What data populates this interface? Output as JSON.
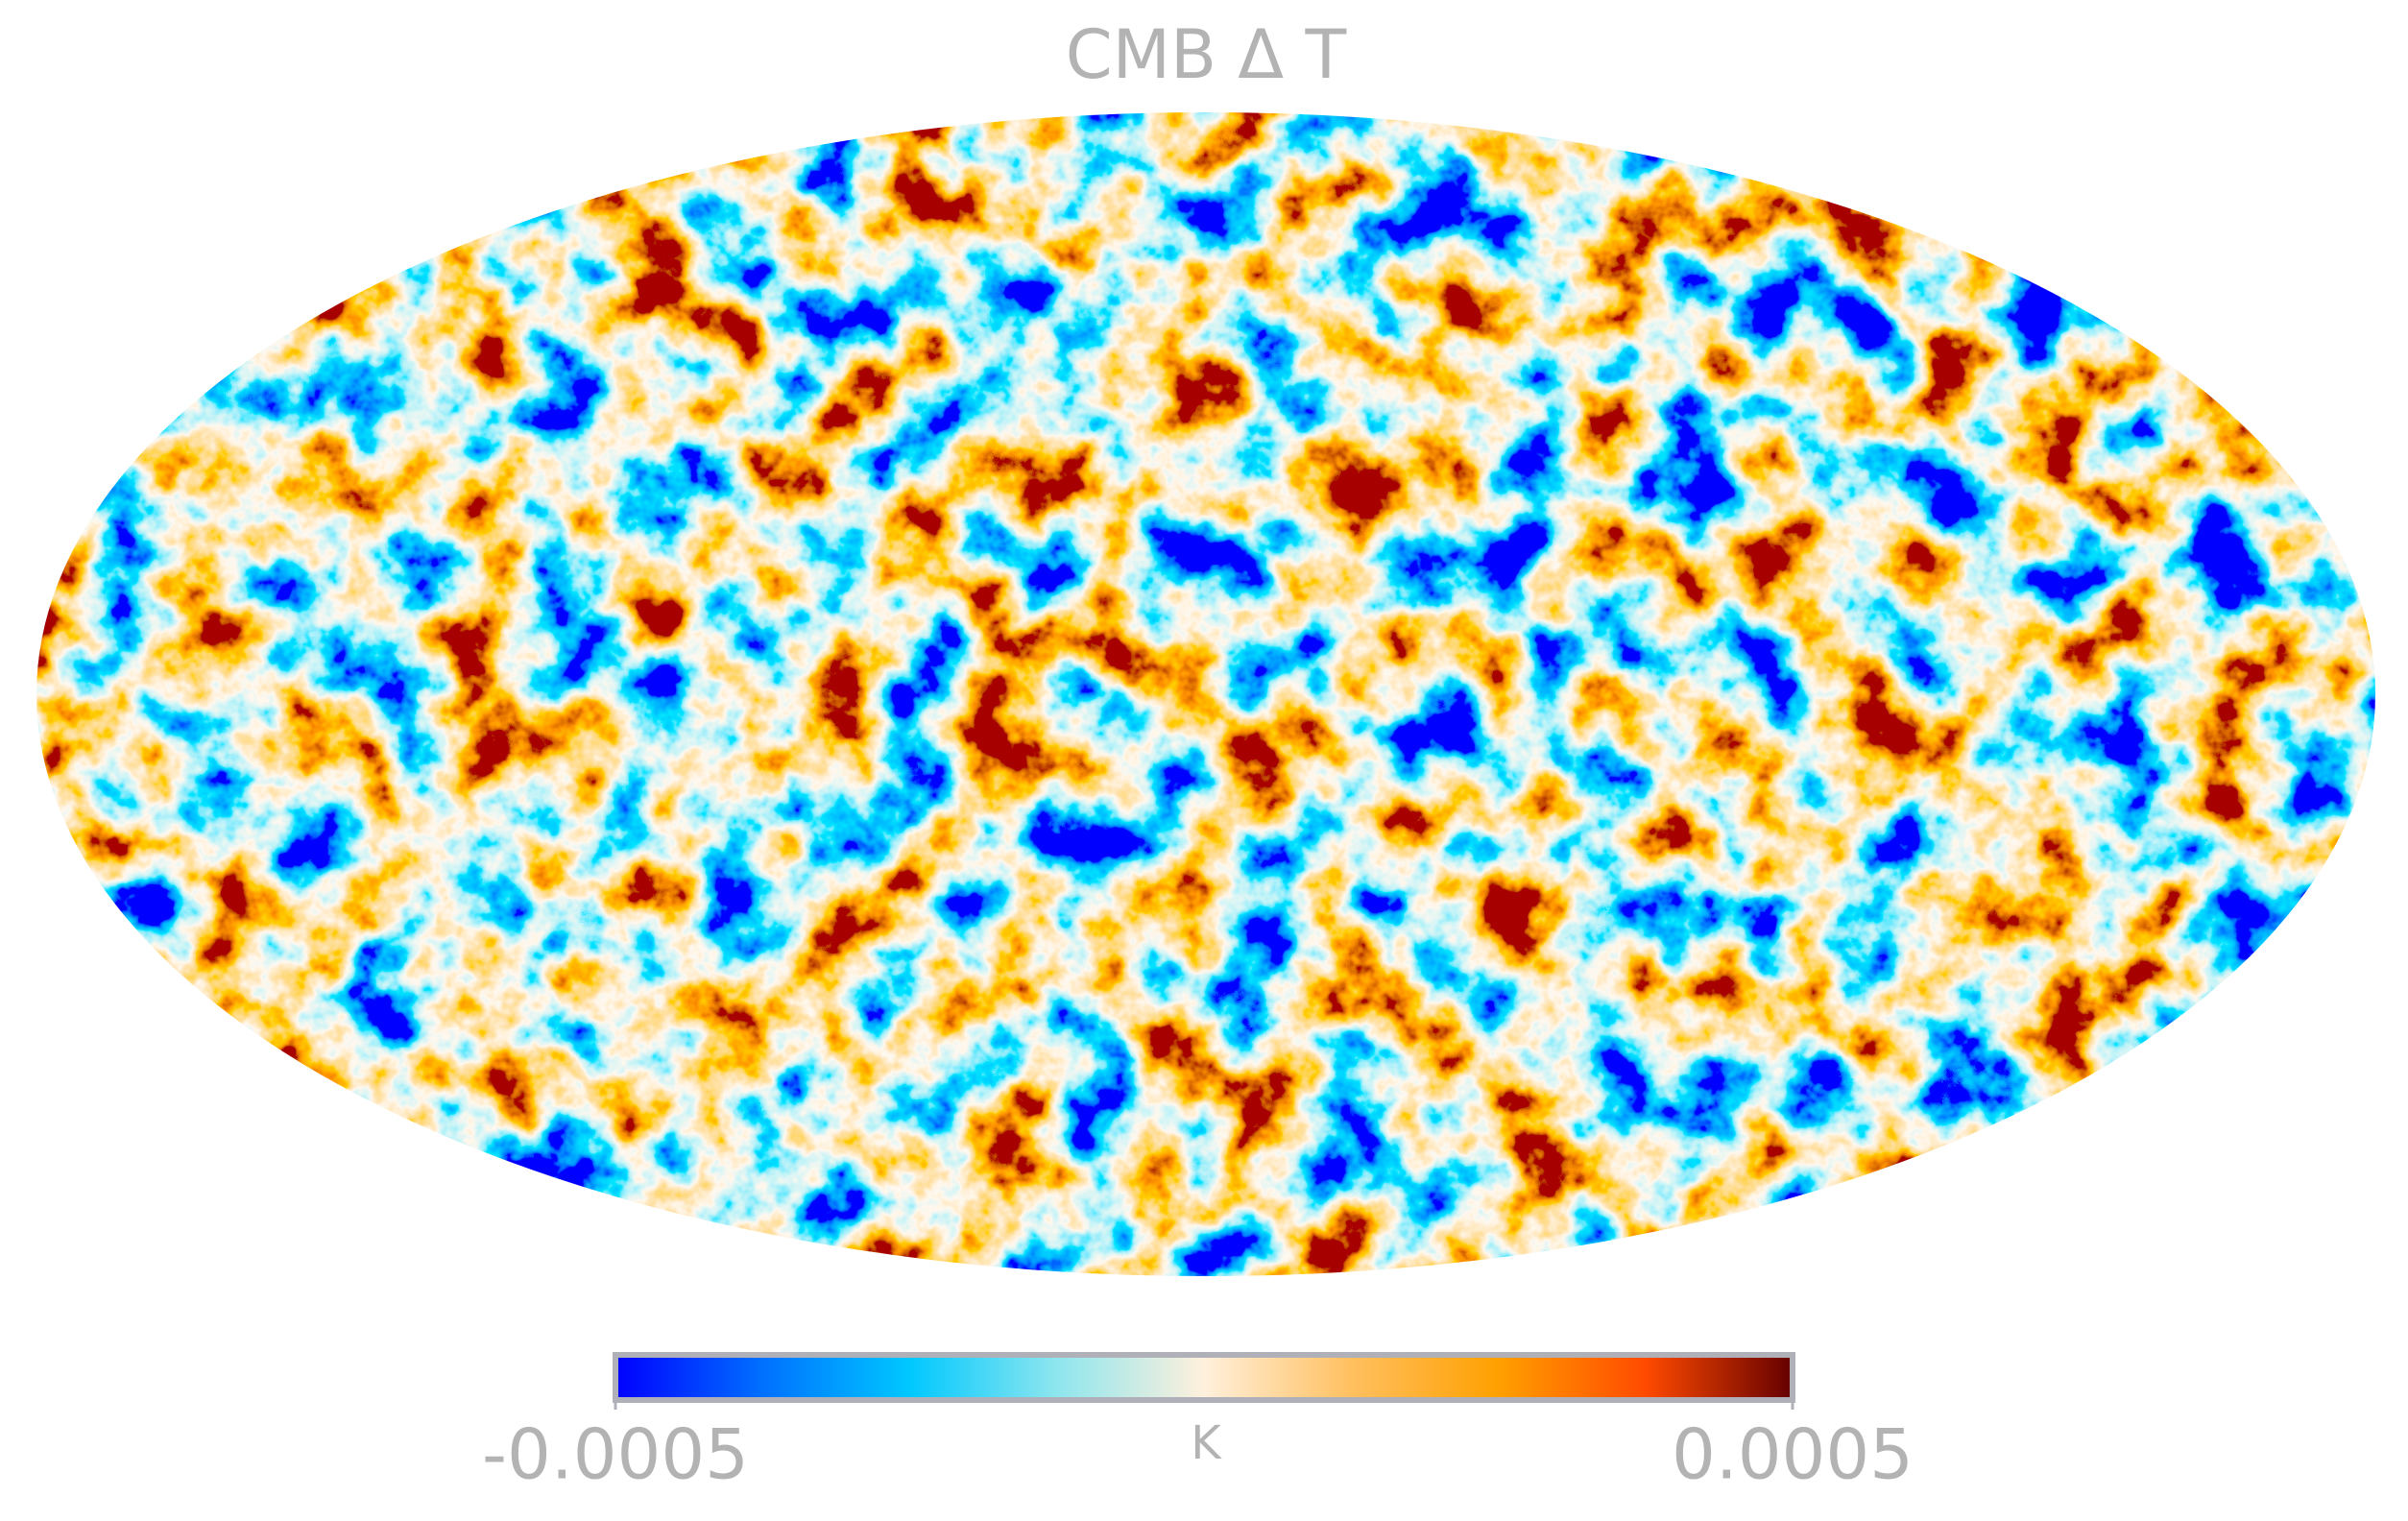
{
  "chart_data": {
    "type": "mollweide",
    "title": "CMB Δ T",
    "colorbar": {
      "label": "K",
      "lim": [
        -0.0005,
        0.0005
      ],
      "ticks": [
        -0.0005,
        0.0005
      ],
      "colormap": [
        "#0000ff",
        "#0070ff",
        "#00c8ff",
        "#8ee6ee",
        "#fff0dc",
        "#ffc060",
        "#ffa000",
        "#ff4a00",
        "#640000"
      ]
    }
  }
}
